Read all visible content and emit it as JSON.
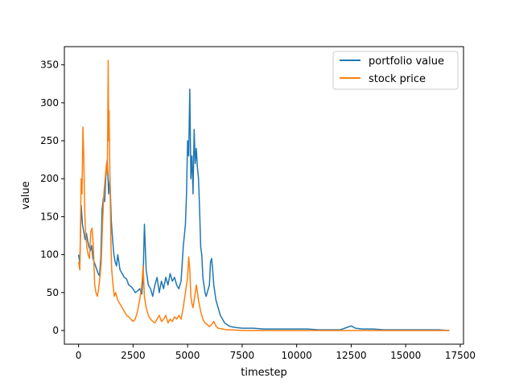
{
  "chart_data": {
    "type": "line",
    "title": "",
    "xlabel": "timestep",
    "ylabel": "value",
    "xlim": [
      -650,
      17650
    ],
    "ylim": [
      -18,
      374
    ],
    "xticks": [
      0,
      2500,
      5000,
      7500,
      10000,
      12500,
      15000,
      17500
    ],
    "yticks": [
      0,
      50,
      100,
      150,
      200,
      250,
      300,
      350
    ],
    "legend": "top-right",
    "grid": false,
    "series": [
      {
        "name": "portfolio value",
        "color": "#1f77b4",
        "x": [
          0,
          60,
          120,
          180,
          240,
          300,
          360,
          420,
          480,
          540,
          600,
          660,
          720,
          780,
          840,
          900,
          960,
          1020,
          1080,
          1140,
          1200,
          1260,
          1320,
          1380,
          1440,
          1500,
          1560,
          1620,
          1680,
          1740,
          1800,
          1900,
          2000,
          2100,
          2200,
          2300,
          2400,
          2500,
          2600,
          2700,
          2800,
          2900,
          2960,
          3020,
          3100,
          3200,
          3300,
          3400,
          3500,
          3600,
          3700,
          3800,
          3900,
          4000,
          4100,
          4200,
          4300,
          4400,
          4500,
          4600,
          4700,
          4800,
          4850,
          4900,
          4950,
          5000,
          5050,
          5100,
          5150,
          5200,
          5250,
          5300,
          5350,
          5400,
          5450,
          5500,
          5550,
          5600,
          5650,
          5700,
          5750,
          5800,
          5850,
          5900,
          5950,
          6000,
          6050,
          6100,
          6150,
          6200,
          6250,
          6300,
          6400,
          6500,
          6600,
          6700,
          6800,
          6900,
          7000,
          7200,
          7500,
          8000,
          8500,
          9000,
          9500,
          10000,
          10500,
          11000,
          11500,
          12000,
          12300,
          12500,
          12700,
          13000,
          13500,
          14000,
          14500,
          15000,
          15500,
          16000,
          16500,
          17000
        ],
        "y": [
          100,
          88,
          165,
          140,
          130,
          120,
          128,
          118,
          110,
          105,
          112,
          95,
          90,
          85,
          80,
          75,
          72,
          95,
          160,
          175,
          170,
          210,
          225,
          180,
          200,
          145,
          120,
          100,
          90,
          85,
          100,
          80,
          75,
          70,
          68,
          60,
          58,
          55,
          50,
          52,
          55,
          48,
          70,
          140,
          80,
          60,
          55,
          45,
          60,
          70,
          50,
          65,
          55,
          70,
          60,
          75,
          65,
          70,
          60,
          55,
          65,
          110,
          125,
          140,
          180,
          250,
          230,
          318,
          200,
          230,
          180,
          265,
          220,
          240,
          215,
          200,
          160,
          110,
          100,
          70,
          60,
          50,
          45,
          50,
          55,
          60,
          90,
          95,
          80,
          60,
          50,
          40,
          30,
          20,
          15,
          10,
          8,
          6,
          5,
          4,
          3,
          3,
          2,
          2,
          2,
          2,
          2,
          1,
          1,
          1,
          4,
          6,
          3,
          2,
          2,
          1,
          1,
          1,
          1,
          1,
          1,
          0
        ]
      },
      {
        "name": "stock price",
        "color": "#ff7f0e",
        "x": [
          0,
          60,
          120,
          160,
          200,
          240,
          280,
          320,
          380,
          440,
          500,
          560,
          620,
          680,
          740,
          800,
          860,
          920,
          980,
          1040,
          1100,
          1160,
          1220,
          1280,
          1320,
          1360,
          1380,
          1400,
          1440,
          1480,
          1520,
          1580,
          1640,
          1700,
          1800,
          1900,
          2000,
          2100,
          2200,
          2300,
          2400,
          2500,
          2600,
          2700,
          2800,
          2900,
          2960,
          3020,
          3100,
          3200,
          3300,
          3400,
          3500,
          3600,
          3700,
          3800,
          3900,
          4000,
          4100,
          4200,
          4300,
          4400,
          4500,
          4600,
          4700,
          4800,
          4900,
          5000,
          5050,
          5100,
          5150,
          5200,
          5250,
          5300,
          5400,
          5500,
          5600,
          5700,
          5800,
          5900,
          6000,
          6100,
          6200,
          6300,
          6400,
          6600,
          6800,
          7000,
          7500,
          8000,
          9000,
          10000,
          11000,
          12000,
          13000,
          14000,
          15000,
          16000,
          17000
        ],
        "y": [
          90,
          80,
          200,
          180,
          268,
          230,
          160,
          130,
          110,
          100,
          95,
          130,
          135,
          110,
          60,
          50,
          45,
          55,
          70,
          90,
          140,
          180,
          200,
          220,
          205,
          356,
          250,
          290,
          200,
          120,
          80,
          60,
          45,
          50,
          40,
          35,
          30,
          25,
          20,
          18,
          15,
          12,
          15,
          25,
          40,
          60,
          85,
          45,
          30,
          20,
          15,
          12,
          10,
          15,
          20,
          12,
          15,
          20,
          10,
          15,
          12,
          18,
          15,
          20,
          15,
          30,
          50,
          70,
          97,
          80,
          45,
          35,
          30,
          40,
          60,
          40,
          25,
          15,
          10,
          8,
          5,
          8,
          12,
          6,
          3,
          2,
          1,
          1,
          0,
          0,
          0,
          0,
          0,
          0,
          0,
          0,
          0,
          0,
          0
        ]
      }
    ]
  }
}
